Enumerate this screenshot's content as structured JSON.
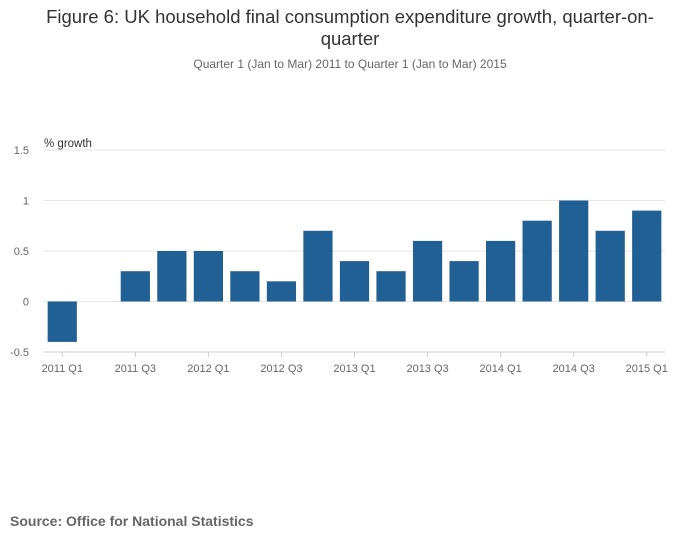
{
  "title": "Figure 6: UK household final consumption expenditure growth, quarter-on-quarter",
  "subtitle": "Quarter 1 (Jan to Mar) 2011 to Quarter 1 (Jan to Mar) 2015",
  "source": "Source: Office for National Statistics",
  "colors": {
    "bar": "#206095",
    "grid": "#e6e6e6",
    "axis": "#cccccc",
    "tick_text": "#666666"
  },
  "chart_data": {
    "type": "bar",
    "ylabel": "% growth",
    "xlabel": "",
    "ylim": [
      -0.5,
      1.5
    ],
    "yticks": [
      "-0.5",
      "0",
      "0.5",
      "1",
      "1.5"
    ],
    "ytick_values": [
      -0.5,
      0,
      0.5,
      1,
      1.5
    ],
    "categories": [
      "2011 Q1",
      "2011 Q2",
      "2011 Q3",
      "2011 Q4",
      "2012 Q1",
      "2012 Q2",
      "2012 Q3",
      "2012 Q4",
      "2013 Q1",
      "2013 Q2",
      "2013 Q3",
      "2013 Q4",
      "2014 Q1",
      "2014 Q2",
      "2014 Q3",
      "2014 Q4",
      "2015 Q1"
    ],
    "values": [
      -0.4,
      0.0,
      0.3,
      0.5,
      0.5,
      0.3,
      0.2,
      0.7,
      0.4,
      0.3,
      0.6,
      0.4,
      0.6,
      0.8,
      1.0,
      0.7,
      0.9
    ],
    "xtick_labels": [
      "2011 Q1",
      "2011 Q3",
      "2012 Q1",
      "2012 Q3",
      "2013 Q1",
      "2013 Q3",
      "2014 Q1",
      "2014 Q3",
      "2015 Q1"
    ],
    "grid": true,
    "legend": "none"
  }
}
